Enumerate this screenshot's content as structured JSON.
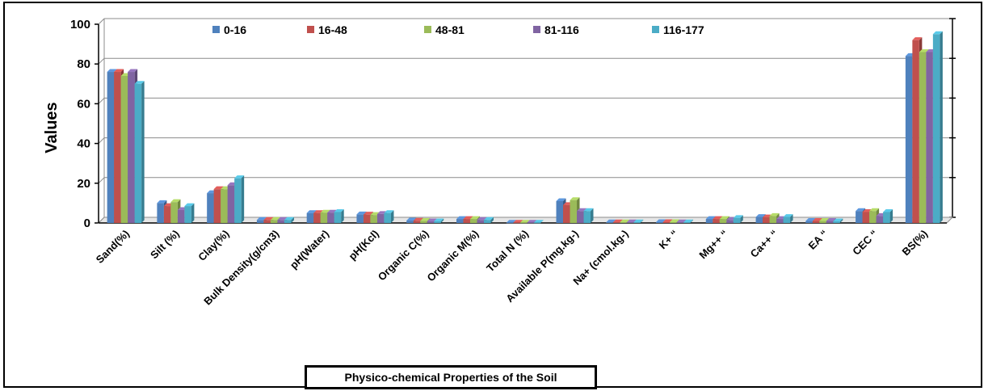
{
  "chart_data": {
    "type": "bar",
    "title": "",
    "xlabel": "Physico-chemical Properties of the Soil",
    "ylabel": "Values",
    "ylim": [
      0,
      100
    ],
    "yticks": [
      0,
      20,
      40,
      60,
      80,
      100
    ],
    "grid": true,
    "legend_position": "top",
    "categories": [
      "Sand(%)",
      "Silt (%)",
      "Clay(%)",
      "Bulk Density(g/cm3)",
      "pH(Water)",
      "pH(Kcl)",
      "Organic C(%)",
      "Organic M(%)",
      "Total N (%)",
      "Available P(mg.kg-)",
      "Na+ (cmol.kg-)",
      "K+   “",
      "Mg++ “",
      "Ca++ “",
      "EA  “",
      "CEC “",
      "BS(%)"
    ],
    "series": [
      {
        "name": "0-16",
        "color": "#4f81bd",
        "values": [
          76,
          10,
          15,
          1.5,
          5,
          4.3,
          1.2,
          2,
          0.1,
          11,
          0.3,
          0.4,
          2,
          3,
          1,
          6,
          84
        ]
      },
      {
        "name": "16-48",
        "color": "#c0504d",
        "values": [
          76,
          8.5,
          17,
          1.5,
          5,
          4.2,
          1.1,
          2,
          0.1,
          9,
          0.3,
          0.4,
          2,
          2.8,
          1,
          5.5,
          92
        ]
      },
      {
        "name": "48-81",
        "color": "#9bbb59",
        "values": [
          74,
          10.5,
          17,
          1.5,
          5.2,
          4,
          1.0,
          2,
          0.1,
          11.5,
          0.3,
          0.4,
          2,
          3.5,
          1,
          6,
          86
        ]
      },
      {
        "name": "81-116",
        "color": "#8064a2",
        "values": [
          76,
          6.5,
          19,
          1.5,
          5.2,
          4.5,
          0.8,
          1.5,
          0.1,
          6,
          0.3,
          0.3,
          1.5,
          2,
          1,
          3.5,
          86
        ]
      },
      {
        "name": "116-177",
        "color": "#4bacc6",
        "values": [
          70,
          8.5,
          22.5,
          1.5,
          5.5,
          5,
          0.8,
          1.5,
          0.1,
          6,
          0.3,
          0.3,
          2.5,
          3,
          0.8,
          5.5,
          95
        ]
      }
    ]
  }
}
